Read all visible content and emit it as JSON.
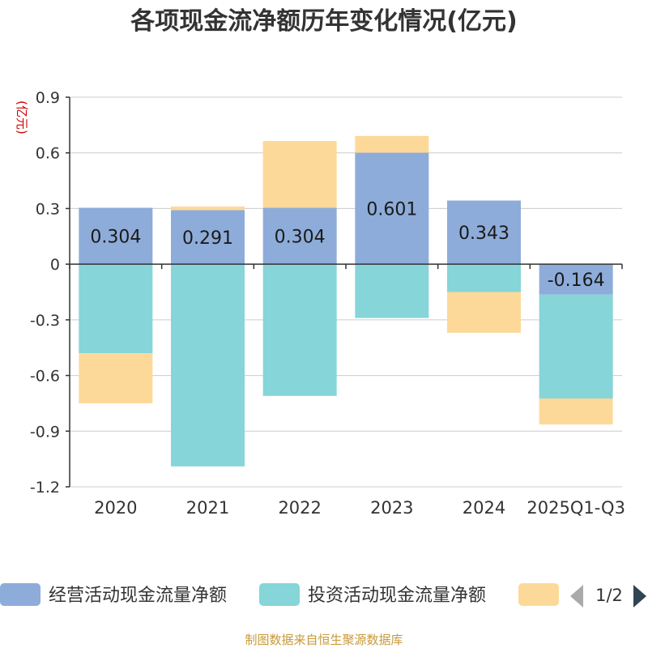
{
  "chart_data": {
    "type": "bar",
    "stacked": true,
    "title": "各项现金流净额历年变化情况(亿元)",
    "ylabel": "(亿元)",
    "xlabel": "",
    "ylim": [
      -1.2,
      0.9
    ],
    "yticks": [
      0.9,
      0.6,
      0.3,
      0,
      -0.3,
      -0.6,
      -0.9,
      -1.2
    ],
    "ytick_labels": [
      "0.9",
      "0.6",
      "0.3",
      "0",
      "-0.3",
      "-0.6",
      "-0.9",
      "-1.2"
    ],
    "grid": true,
    "categories": [
      "2020",
      "2021",
      "2022",
      "2023",
      "2024",
      "2025Q1-Q3"
    ],
    "series": [
      {
        "name": "经营活动现金流量净额",
        "color": "#8eacd9",
        "values": [
          0.304,
          0.291,
          0.304,
          0.601,
          0.343,
          -0.164
        ],
        "labels": [
          "0.304",
          "0.291",
          "0.304",
          "0.601",
          "0.343",
          "-0.164"
        ]
      },
      {
        "name": "投资活动现金流量净额",
        "color": "#86d5d8",
        "values": [
          -0.48,
          -1.09,
          -0.71,
          -0.29,
          -0.15,
          -0.56
        ]
      },
      {
        "name": "",
        "color": "#fdd999",
        "values": [
          -0.27,
          0.02,
          0.36,
          0.09,
          -0.22,
          -0.14
        ]
      }
    ],
    "legend": {
      "position": "bottom",
      "page": "1/2"
    }
  },
  "footer": {
    "source": "制图数据来自恒生聚源数据库"
  }
}
